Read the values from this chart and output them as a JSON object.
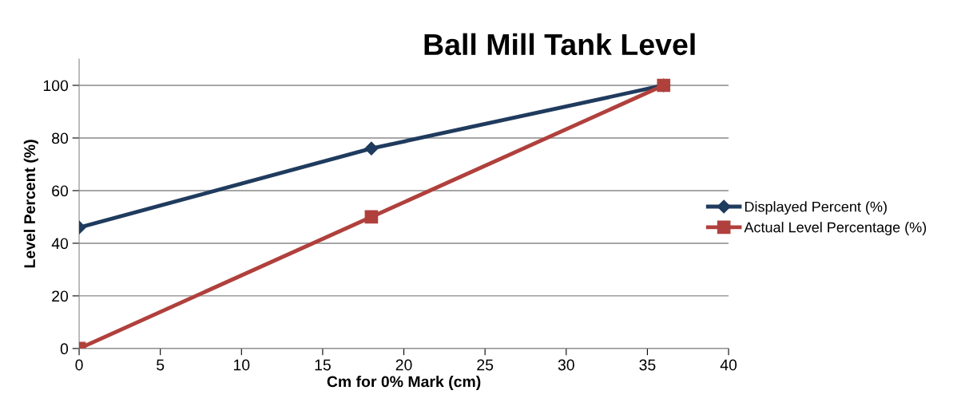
{
  "chart_data": {
    "type": "line",
    "title": "Ball Mill Tank Level",
    "xlabel": "Cm for 0% Mark (cm)",
    "ylabel": "Level Percent (%)",
    "series": [
      {
        "name": "Displayed Percent (%)",
        "color": "#1f3b5e",
        "marker": "diamond",
        "x": [
          0,
          18,
          36
        ],
        "values": [
          46,
          76,
          100
        ]
      },
      {
        "name": "Actual Level Percentage (%)",
        "color": "#b0403c",
        "marker": "square",
        "x": [
          0,
          18,
          36
        ],
        "values": [
          0,
          50,
          100
        ]
      }
    ],
    "xlim": [
      0,
      40
    ],
    "xticks": [
      0,
      5,
      10,
      15,
      20,
      25,
      30,
      35,
      40
    ],
    "ylim": [
      0,
      110
    ],
    "yticks": [
      0,
      20,
      40,
      60,
      80,
      100
    ],
    "grid": "y",
    "legend": "right",
    "line_style": "solid"
  }
}
